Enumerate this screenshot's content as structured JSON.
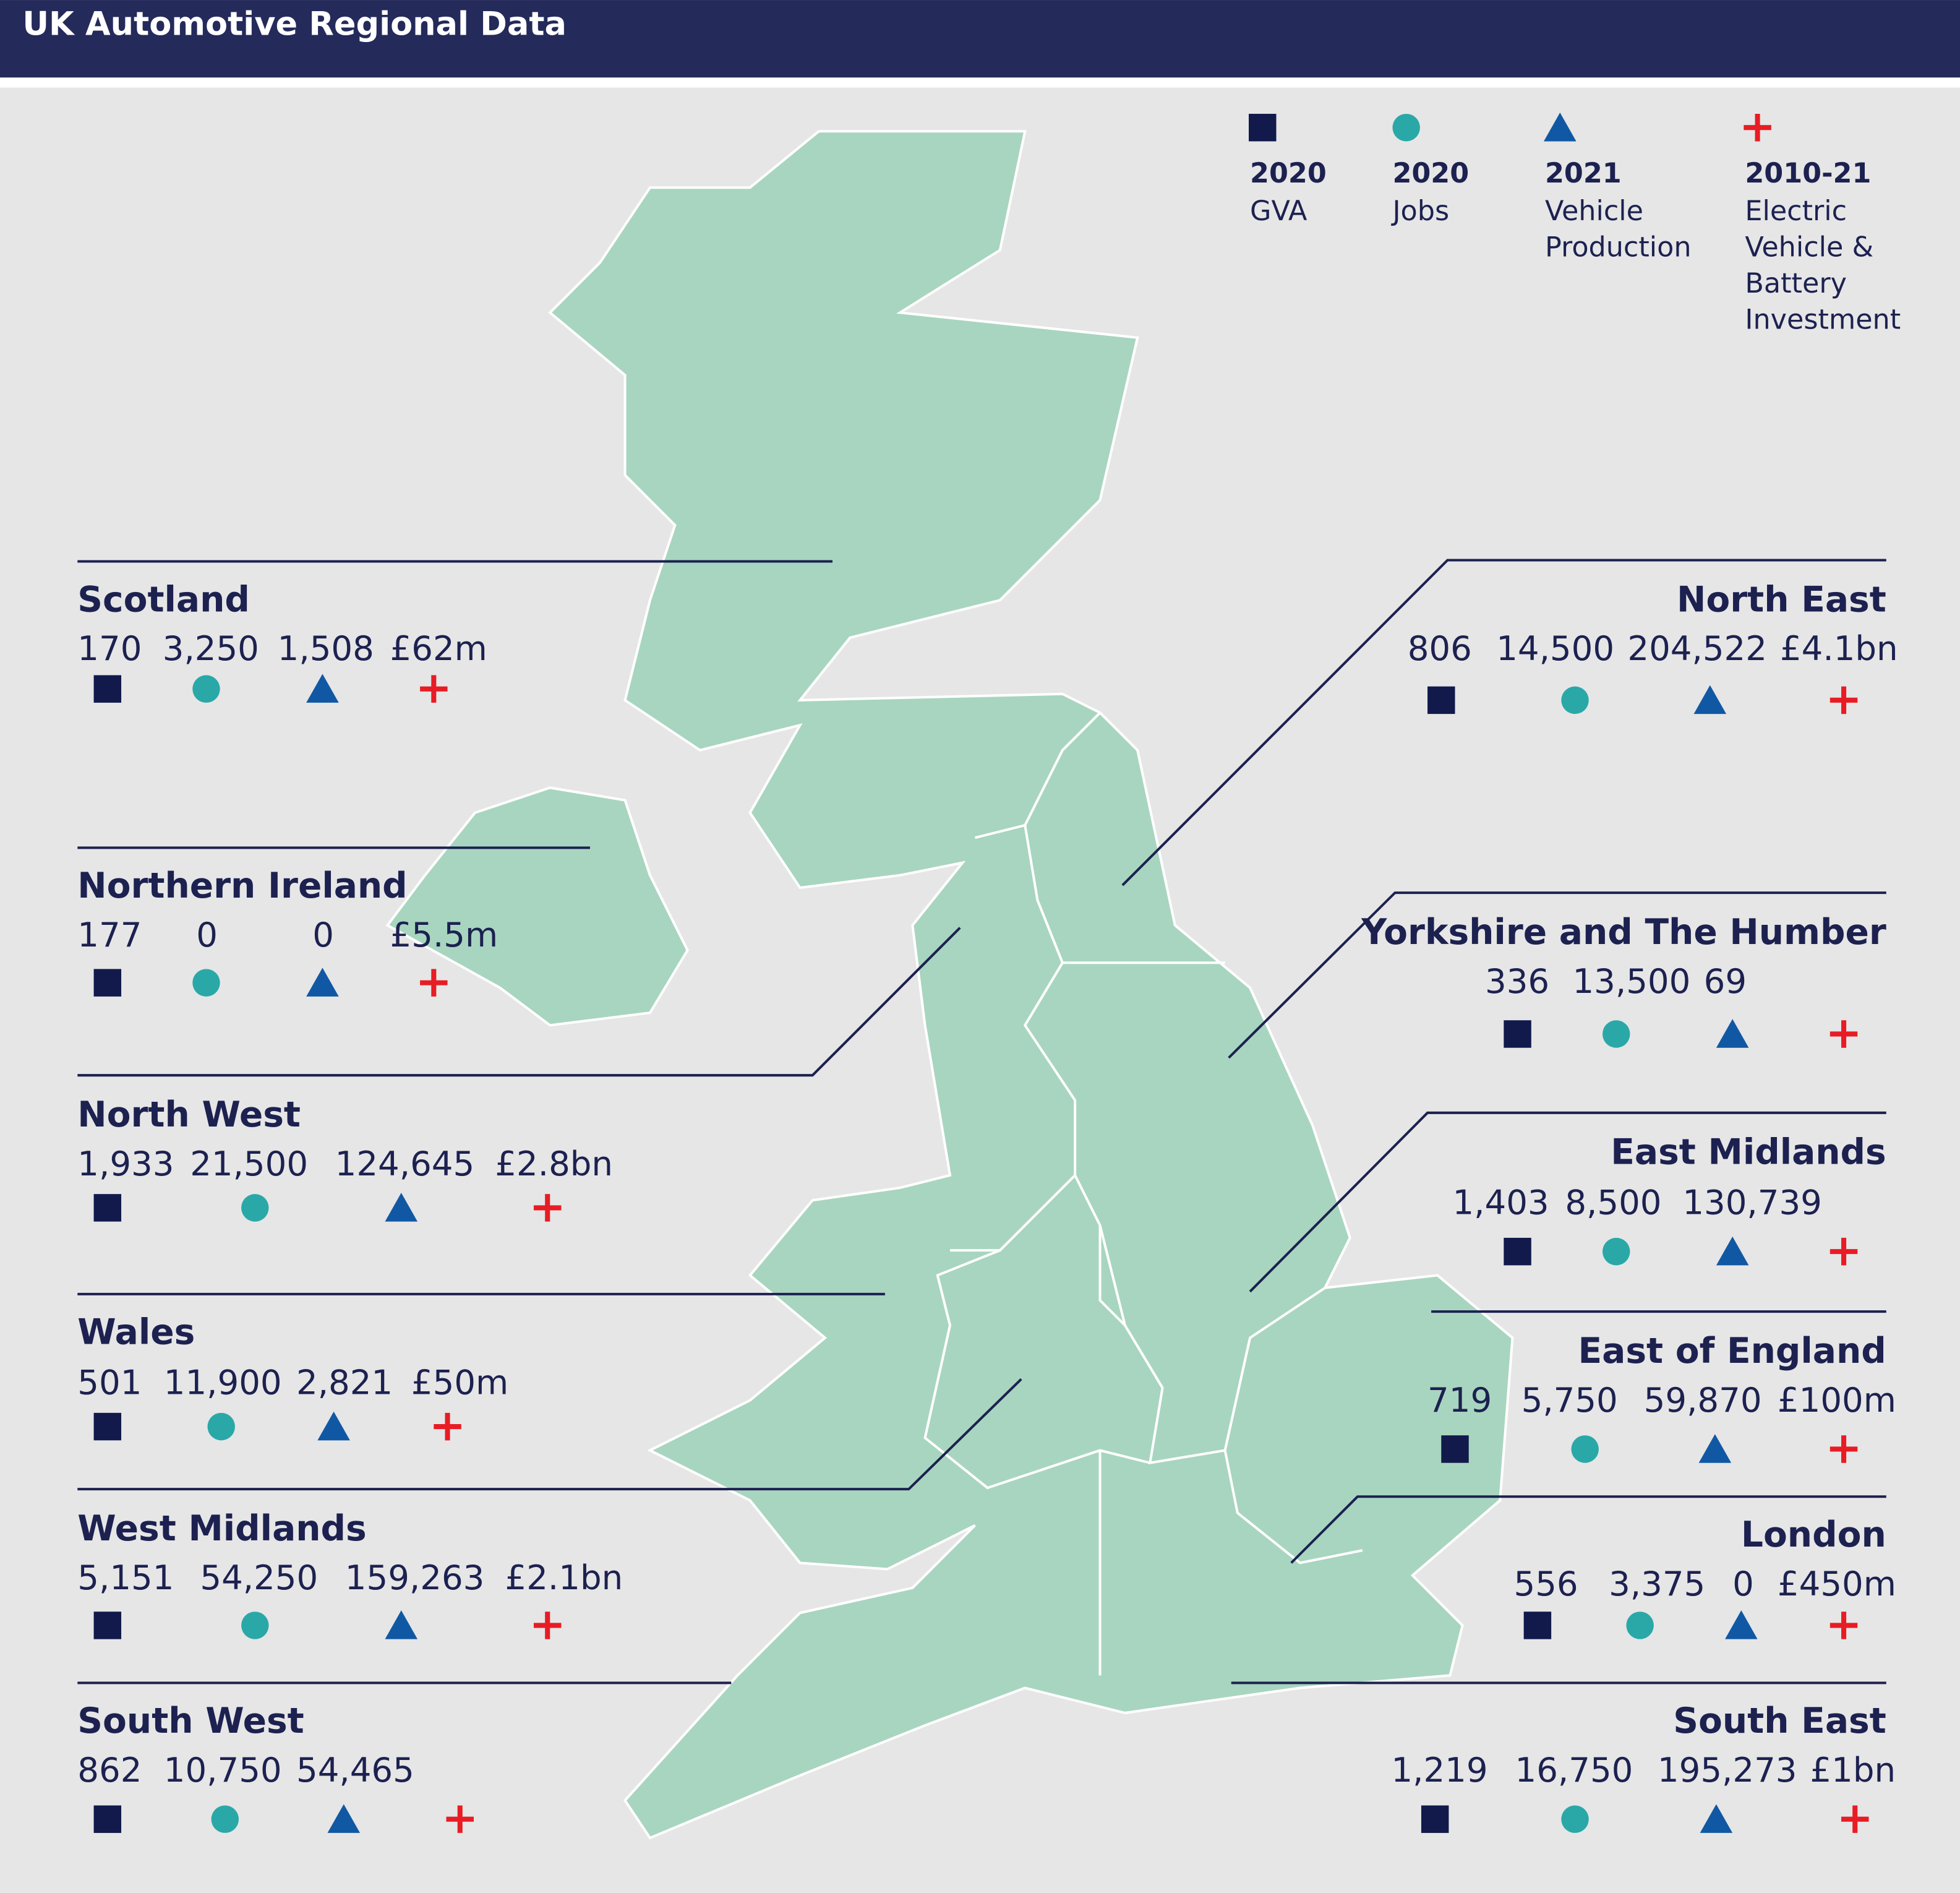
{
  "header": {
    "title": "UK Automotive Regional Data"
  },
  "legend": [
    {
      "year": "2020",
      "label": [
        "GVA"
      ]
    },
    {
      "year": "2020",
      "label": [
        "Jobs"
      ]
    },
    {
      "year": "2021",
      "label": [
        "Vehicle",
        "Production"
      ]
    },
    {
      "year": "2010-21",
      "label": [
        "Electric",
        "Vehicle &",
        "Battery",
        "Investment"
      ]
    }
  ],
  "regions": [
    {
      "name": "Scotland",
      "values": [
        "170",
        "3,250",
        "1,508",
        "£62m"
      ]
    },
    {
      "name": "Northern Ireland",
      "values": [
        "177",
        "0",
        "0",
        "£5.5m"
      ]
    },
    {
      "name": "North West",
      "values": [
        "1,933",
        "21,500",
        "124,645",
        "£2.8bn"
      ]
    },
    {
      "name": "Wales",
      "values": [
        "501",
        "11,900",
        "2,821",
        "£50m"
      ]
    },
    {
      "name": "West Midlands",
      "values": [
        "5,151",
        "54,250",
        "159,263",
        "£2.1bn"
      ]
    },
    {
      "name": "South West",
      "values": [
        "862",
        "10,750",
        "54,465"
      ]
    },
    {
      "name": "North East",
      "values": [
        "806",
        "14,500",
        "204,522",
        "£4.1bn"
      ]
    },
    {
      "name": "Yorkshire and The Humber",
      "values": [
        "336",
        "13,500",
        "69"
      ]
    },
    {
      "name": "East Midlands",
      "values": [
        "1,403",
        "8,500",
        "130,739"
      ]
    },
    {
      "name": "East of England",
      "values": [
        "719",
        "5,750",
        "59,870",
        "£100m"
      ]
    },
    {
      "name": "London",
      "values": [
        "556",
        "3,375",
        "0",
        "£450m"
      ]
    },
    {
      "name": "South East",
      "values": [
        "1,219",
        "16,750",
        "195,273",
        "£1bn"
      ]
    }
  ]
}
